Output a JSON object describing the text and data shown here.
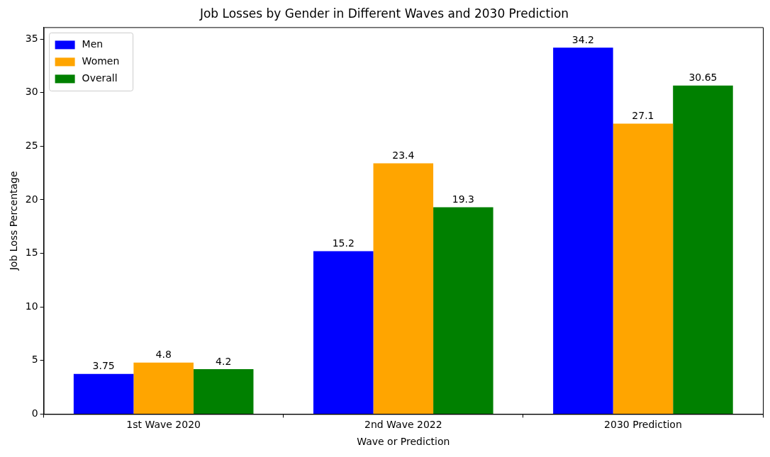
{
  "chart_data": {
    "type": "bar",
    "title": "Job Losses by Gender in Different Waves and 2030 Prediction",
    "xlabel": "Wave or Prediction",
    "ylabel": "Job Loss Percentage",
    "categories": [
      "1st Wave 2020",
      "2nd Wave 2022",
      "2030 Prediction"
    ],
    "series": [
      {
        "name": "Men",
        "color": "#0000ff",
        "values": [
          3.75,
          15.2,
          34.2
        ]
      },
      {
        "name": "Women",
        "color": "#ffa500",
        "values": [
          4.8,
          23.4,
          27.1
        ]
      },
      {
        "name": "Overall",
        "color": "#008000",
        "values": [
          4.2,
          19.3,
          30.65
        ]
      }
    ],
    "ylim": [
      0,
      36.1
    ],
    "yticks": [
      0,
      5,
      10,
      15,
      20,
      25,
      30,
      35
    ],
    "grid": false,
    "legend": "top left",
    "data_labels": true
  }
}
